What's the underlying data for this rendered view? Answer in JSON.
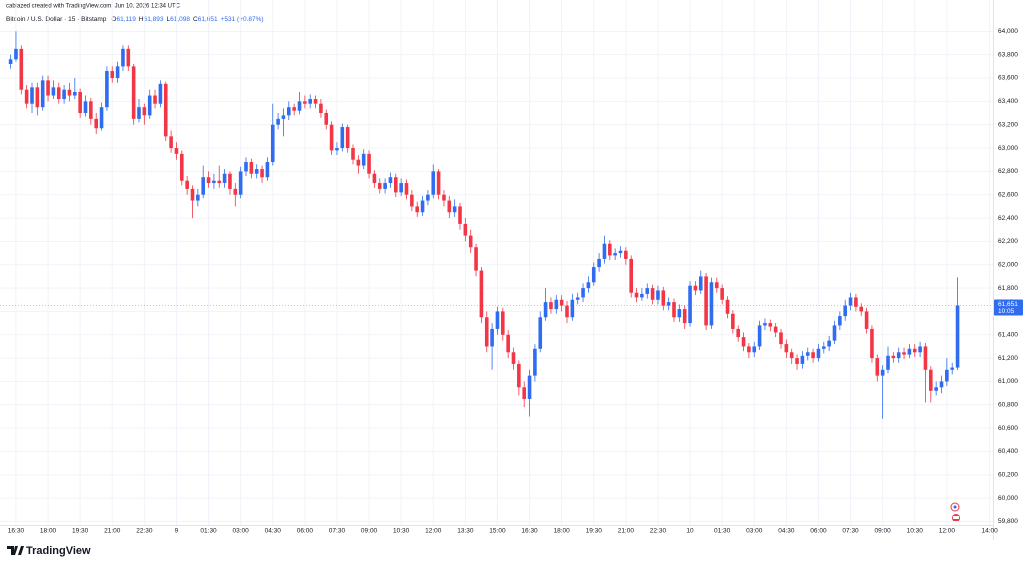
{
  "chart_data": {
    "type": "candlestick",
    "subtitle": "cablazed created with TradingView.com, Jun 10, 2026 12:34 UTC",
    "title": "Bitcoin / U.S. Dollar · 15 · Bitstamp",
    "ohlc_legend": [
      {
        "label": "O",
        "value": "61,119"
      },
      {
        "label": "H",
        "value": "61,893"
      },
      {
        "label": "L",
        "value": "61,098"
      },
      {
        "label": "C",
        "value": "61,651"
      }
    ],
    "change": "+531 (+0.87%)",
    "categories": [
      null,
      "16:30",
      null,
      null,
      null,
      null,
      null,
      "18:00",
      null,
      null,
      null,
      null,
      null,
      "19:30",
      null,
      null,
      null,
      null,
      null,
      "21:00",
      null,
      null,
      null,
      null,
      null,
      "22:30",
      null,
      null,
      null,
      null,
      null,
      "9",
      null,
      null,
      null,
      null,
      null,
      "01:30",
      null,
      null,
      null,
      null,
      null,
      "03:00",
      null,
      null,
      null,
      null,
      null,
      "04:30",
      null,
      null,
      null,
      null,
      null,
      "06:00",
      null,
      null,
      null,
      null,
      null,
      "07:30",
      null,
      null,
      null,
      null,
      null,
      "09:00",
      null,
      null,
      null,
      null,
      null,
      "10:30",
      null,
      null,
      null,
      null,
      null,
      "12:00",
      null,
      null,
      null,
      null,
      null,
      "13:30",
      null,
      null,
      null,
      null,
      null,
      "15:00",
      null,
      null,
      null,
      null,
      null,
      "16:30",
      null,
      null,
      null,
      null,
      null,
      "18:00",
      null,
      null,
      null,
      null,
      null,
      "19:30",
      null,
      null,
      null,
      null,
      null,
      "21:00",
      null,
      null,
      null,
      null,
      null,
      "22:30",
      null,
      null,
      null,
      null,
      null,
      "10",
      null,
      null,
      null,
      null,
      null,
      "01:30",
      null,
      null,
      null,
      null,
      null,
      "03:00",
      null,
      null,
      null,
      null,
      null,
      "04:30",
      null,
      null,
      null,
      null,
      null,
      "06:00",
      null,
      null,
      null,
      null,
      null,
      "07:30",
      null,
      null,
      null,
      null,
      null,
      "09:00",
      null,
      null,
      null,
      null,
      null,
      "10:30",
      null,
      null,
      null,
      null,
      null,
      "12:00",
      null,
      null,
      null,
      null,
      null,
      null,
      null,
      "14:00"
    ],
    "open": [
      63720,
      63760,
      63850,
      63500,
      63380,
      63520,
      63350,
      63580,
      63450,
      63520,
      63420,
      63500,
      63450,
      63480,
      63300,
      63400,
      63250,
      63170,
      63350,
      63660,
      63600,
      63700,
      63850,
      63700,
      63250,
      63350,
      63280,
      63450,
      63380,
      63550,
      63100,
      63000,
      62950,
      62720,
      62650,
      62550,
      62600,
      62750,
      62700,
      62720,
      62700,
      62780,
      62650,
      62600,
      62800,
      62880,
      62780,
      62820,
      62750,
      62880,
      63200,
      63250,
      63280,
      63350,
      63320,
      63400,
      63380,
      63420,
      63380,
      63300,
      63200,
      62980,
      63000,
      63180,
      63000,
      62900,
      62850,
      62950,
      62780,
      62700,
      62650,
      62700,
      62750,
      62620,
      62700,
      62600,
      62500,
      62450,
      62550,
      62600,
      62800,
      62600,
      62550,
      62450,
      62500,
      62350,
      62250,
      62150,
      61950,
      61550,
      61300,
      61450,
      61600,
      61400,
      61250,
      61150,
      60950,
      60850,
      61050,
      61280,
      61550,
      61680,
      61620,
      61700,
      61650,
      61550,
      61700,
      61720,
      61800,
      61850,
      61980,
      62050,
      62180,
      62080,
      62100,
      62120,
      62050,
      61760,
      61720,
      61750,
      61800,
      61700,
      61780,
      61650,
      61680,
      61550,
      61620,
      61500,
      61820,
      61780,
      61900,
      61480,
      61850,
      61800,
      61700,
      61580,
      61450,
      61380,
      61300,
      61250,
      61300,
      61480,
      61500,
      61470,
      61420,
      61320,
      61250,
      61200,
      61150,
      61220,
      61250,
      61200,
      61280,
      61300,
      61350,
      61480,
      61560,
      61650,
      61720,
      61640,
      61600,
      61450,
      61200,
      61050,
      61100,
      61220,
      61200,
      61250,
      61230,
      61280,
      61250,
      61300,
      61100,
      60920,
      60950,
      61000,
      61100,
      61119,
      null,
      null,
      null,
      null,
      null,
      null
    ],
    "high": [
      63800,
      64000,
      63880,
      63540,
      63560,
      63560,
      63620,
      63620,
      63580,
      63560,
      63540,
      63560,
      63600,
      63510,
      63450,
      63430,
      63300,
      63390,
      63700,
      63700,
      63740,
      63880,
      63880,
      63720,
      63420,
      63380,
      63500,
      63500,
      63580,
      63570,
      63150,
      63050,
      62980,
      62760,
      62680,
      62650,
      62850,
      62800,
      62780,
      62850,
      62820,
      62800,
      62700,
      62840,
      62920,
      62910,
      62860,
      62850,
      62920,
      63380,
      63300,
      63340,
      63400,
      63380,
      63480,
      63450,
      63460,
      63450,
      63420,
      63330,
      63230,
      63050,
      63210,
      63200,
      63030,
      62940,
      62990,
      62980,
      62810,
      62740,
      62740,
      62790,
      62780,
      62740,
      62730,
      62640,
      62540,
      62590,
      62640,
      62860,
      62820,
      62640,
      62590,
      62560,
      62530,
      62400,
      62300,
      62180,
      61980,
      61600,
      61500,
      61640,
      61630,
      61440,
      61290,
      61180,
      61000,
      61100,
      61320,
      61600,
      61800,
      61720,
      61740,
      61740,
      61690,
      61750,
      61760,
      61840,
      61900,
      62020,
      62100,
      62250,
      62210,
      62140,
      62160,
      62150,
      62080,
      61800,
      61800,
      61840,
      61830,
      61820,
      61810,
      61720,
      61710,
      61660,
      61650,
      61860,
      61860,
      61950,
      61930,
      61890,
      61890,
      61830,
      61730,
      61610,
      61480,
      61420,
      61330,
      61340,
      61520,
      61540,
      61530,
      61500,
      61450,
      61360,
      61280,
      61230,
      61260,
      61290,
      61280,
      61320,
      61340,
      61390,
      61520,
      61600,
      61700,
      61760,
      61750,
      61670,
      61630,
      61480,
      61230,
      61140,
      61300,
      61250,
      61290,
      61290,
      61320,
      61320,
      61340,
      61330,
      61130,
      61000,
      61050,
      61200,
      61160,
      61893,
      null,
      null,
      null,
      null,
      null,
      null
    ],
    "low": [
      63680,
      63740,
      63460,
      63340,
      63300,
      63280,
      63320,
      63400,
      63420,
      63380,
      63380,
      63400,
      63420,
      63260,
      63270,
      63200,
      63120,
      63150,
      63320,
      63560,
      63560,
      63660,
      63660,
      63200,
      63220,
      63200,
      63250,
      63340,
      63350,
      63060,
      62960,
      62900,
      62680,
      62600,
      62400,
      62500,
      62570,
      62660,
      62650,
      62660,
      62660,
      62600,
      62500,
      62570,
      62760,
      62740,
      62740,
      62700,
      62720,
      62850,
      63160,
      63100,
      63240,
      63280,
      63290,
      63340,
      63340,
      63340,
      63260,
      63160,
      62940,
      62940,
      62970,
      62960,
      62860,
      62780,
      62820,
      62740,
      62660,
      62610,
      62610,
      62660,
      62580,
      62590,
      62560,
      62460,
      62410,
      62420,
      62510,
      62570,
      62560,
      62500,
      62400,
      62410,
      62300,
      62200,
      62100,
      61900,
      61500,
      61250,
      61100,
      61400,
      61350,
      61200,
      61100,
      60880,
      60780,
      60700,
      61000,
      61250,
      61520,
      61580,
      61580,
      61600,
      61500,
      61520,
      61660,
      61680,
      61760,
      61820,
      61940,
      62010,
      62040,
      62040,
      62060,
      62000,
      61720,
      61680,
      61690,
      61710,
      61660,
      61660,
      61610,
      61610,
      61510,
      61510,
      61450,
      61470,
      61740,
      61750,
      61440,
      61450,
      61760,
      61660,
      61540,
      61410,
      61340,
      61260,
      61200,
      61210,
      61270,
      61440,
      61430,
      61380,
      61280,
      61200,
      61150,
      61100,
      61110,
      61180,
      61160,
      61170,
      61240,
      61260,
      61320,
      61440,
      61520,
      61610,
      61600,
      61560,
      61410,
      61160,
      61000,
      60680,
      61070,
      61160,
      61160,
      61190,
      61200,
      61210,
      61210,
      60820,
      60820,
      60880,
      60900,
      60960,
      61060,
      61098,
      null,
      null,
      null,
      null,
      null,
      null
    ],
    "close": [
      63760,
      63850,
      63500,
      63380,
      63520,
      63350,
      63580,
      63450,
      63520,
      63420,
      63500,
      63450,
      63480,
      63300,
      63400,
      63250,
      63170,
      63350,
      63660,
      63600,
      63700,
      63850,
      63700,
      63250,
      63350,
      63280,
      63450,
      63380,
      63550,
      63100,
      63000,
      62950,
      62720,
      62650,
      62550,
      62600,
      62750,
      62700,
      62720,
      62700,
      62780,
      62650,
      62600,
      62800,
      62880,
      62780,
      62820,
      62750,
      62880,
      63200,
      63250,
      63280,
      63350,
      63320,
      63400,
      63380,
      63420,
      63380,
      63300,
      63200,
      62980,
      63000,
      63180,
      63000,
      62900,
      62850,
      62950,
      62780,
      62700,
      62650,
      62700,
      62750,
      62620,
      62700,
      62600,
      62500,
      62450,
      62550,
      62600,
      62800,
      62600,
      62550,
      62450,
      62500,
      62350,
      62250,
      62150,
      61950,
      61550,
      61300,
      61450,
      61600,
      61400,
      61250,
      61150,
      60950,
      60850,
      61050,
      61280,
      61550,
      61680,
      61620,
      61700,
      61650,
      61550,
      61700,
      61720,
      61800,
      61850,
      61980,
      62050,
      62180,
      62080,
      62100,
      62120,
      62050,
      61760,
      61720,
      61750,
      61800,
      61700,
      61780,
      61650,
      61680,
      61550,
      61620,
      61500,
      61820,
      61780,
      61900,
      61480,
      61850,
      61800,
      61700,
      61580,
      61450,
      61380,
      61300,
      61250,
      61300,
      61480,
      61500,
      61470,
      61420,
      61320,
      61250,
      61200,
      61150,
      61220,
      61250,
      61200,
      61280,
      61300,
      61350,
      61480,
      61560,
      61650,
      61720,
      61640,
      61600,
      61450,
      61200,
      61050,
      61100,
      61220,
      61200,
      61250,
      61230,
      61280,
      61250,
      61300,
      61100,
      60920,
      60950,
      61000,
      61100,
      61119,
      61651,
      null,
      null,
      null,
      null,
      null,
      null
    ],
    "up_color": "#2f6cf0",
    "down_color": "#f23645",
    "ylim": [
      59770,
      64140
    ],
    "yticks": [
      {
        "value": 59800,
        "label": "59,800"
      },
      {
        "value": 60000,
        "label": "60,000"
      },
      {
        "value": 60200,
        "label": "60,200"
      },
      {
        "value": 60400,
        "label": "60,400"
      },
      {
        "value": 60600,
        "label": "60,600"
      },
      {
        "value": 60800,
        "label": "60,800"
      },
      {
        "value": 61000,
        "label": "61,000"
      },
      {
        "value": 61200,
        "label": "61,200"
      },
      {
        "value": 61400,
        "label": "61,400"
      },
      {
        "value": 61600,
        "label": "61,600"
      },
      {
        "value": 61800,
        "label": "61,800"
      },
      {
        "value": 62000,
        "label": "62,000"
      },
      {
        "value": 62200,
        "label": "62,200"
      },
      {
        "value": 62400,
        "label": "62,400"
      },
      {
        "value": 62600,
        "label": "62,600"
      },
      {
        "value": 62800,
        "label": "62,800"
      },
      {
        "value": 63000,
        "label": "63,000"
      },
      {
        "value": 63200,
        "label": "63,200"
      },
      {
        "value": 63400,
        "label": "63,400"
      },
      {
        "value": 63600,
        "label": "63,600"
      },
      {
        "value": 63800,
        "label": "63,800"
      },
      {
        "value": 64000,
        "label": "64,000"
      }
    ],
    "grid": true,
    "last_price": {
      "value": 61651,
      "label": "61,651",
      "countdown": "10:05"
    }
  },
  "brand": "TradingView"
}
